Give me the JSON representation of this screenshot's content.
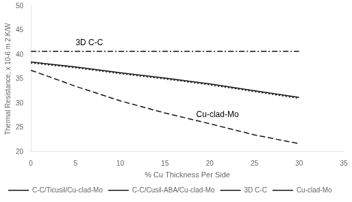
{
  "chart_data": {
    "type": "line",
    "xlabel": "% Cu Thickness Per Side",
    "ylabel": "Thermal Resistance, x 10-6 m 2.K/W",
    "xlim": [
      0,
      35
    ],
    "ylim": [
      20,
      50
    ],
    "xticks": [
      0,
      5,
      10,
      15,
      20,
      25,
      30,
      35
    ],
    "yticks": [
      20,
      25,
      30,
      35,
      40,
      45,
      50
    ],
    "grid": false,
    "legend": "lower left",
    "series": [
      {
        "name": "C-C/Ticusil/Cu-clad-Mo",
        "color": "#111111",
        "line_style": "solid",
        "x": [
          0,
          2,
          5,
          10,
          15,
          20,
          25,
          30
        ],
        "values": [
          38.5,
          38.1,
          37.5,
          36.3,
          35.2,
          34.0,
          32.6,
          31.2
        ]
      },
      {
        "name": "C-C/Cusil-ABA/Cu-clad-Mo",
        "color": "#111111",
        "line_style": "dotted",
        "x": [
          0,
          2,
          5,
          10,
          15,
          20,
          25,
          30
        ],
        "values": [
          38.3,
          37.9,
          37.3,
          36.1,
          35.0,
          33.8,
          32.4,
          31.0
        ]
      },
      {
        "name": "3D C-C",
        "color": "#111111",
        "line_style": "dashdot",
        "x": [
          0,
          30
        ],
        "values": [
          40.7,
          40.7
        ]
      },
      {
        "name": "Cu-clad-Mo",
        "color": "#111111",
        "line_style": "dashed",
        "x": [
          0,
          2,
          5,
          10,
          15,
          20,
          25,
          30
        ],
        "values": [
          36.8,
          35.5,
          33.5,
          30.5,
          28.0,
          25.8,
          23.5,
          21.7
        ]
      }
    ],
    "annotations": [
      {
        "text": "3D C-C",
        "x": 5,
        "y": 42.0
      },
      {
        "text": "Cu-clad-Mo",
        "x": 18.5,
        "y": 27.2
      }
    ]
  }
}
